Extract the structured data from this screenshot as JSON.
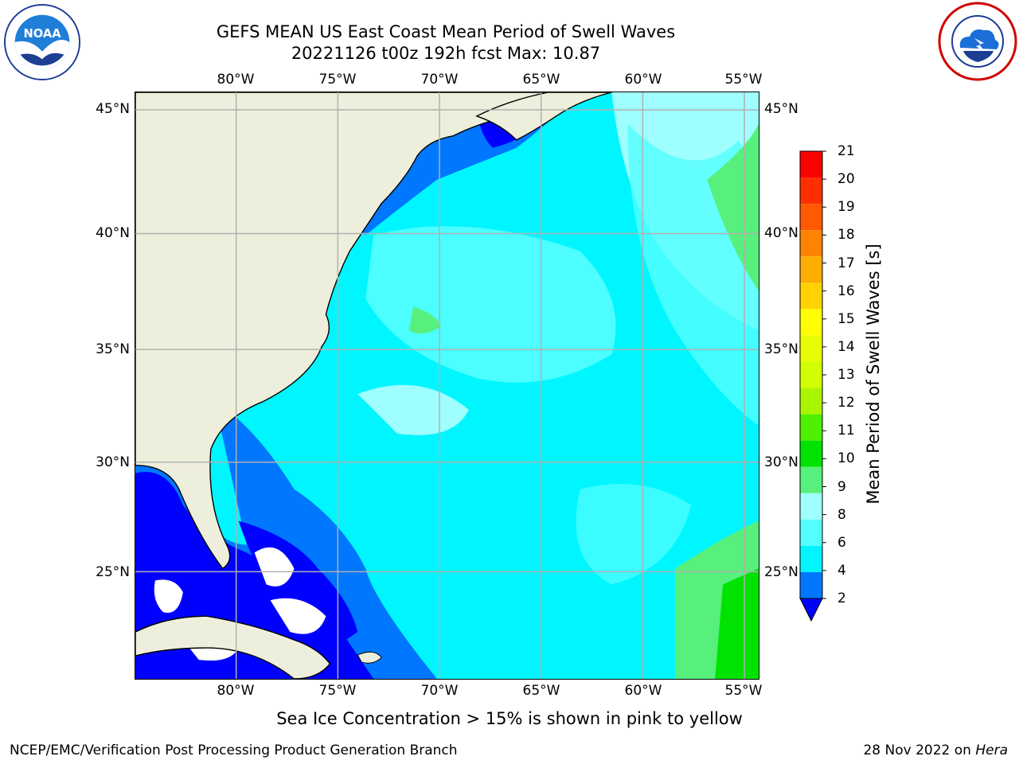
{
  "title": {
    "line1": "GEFS MEAN US East Coast Mean Period of Swell Waves",
    "line2": "20221126 t00z 192h fcst   Max: 10.87"
  },
  "logos": {
    "noaa": {
      "label": "NOAA",
      "icon": "noaa-logo",
      "ring_text": "NATIONAL OCEANIC AND ATMOSPHERIC ADMINISTRATION · U.S. DEPARTMENT OF COMMERCE"
    },
    "nws": {
      "icon": "nws-logo",
      "ring_text": "NATIONAL WEATHER SERVICE"
    }
  },
  "map": {
    "longitude_ticks": [
      "80°W",
      "75°W",
      "70°W",
      "65°W",
      "60°W",
      "55°W"
    ],
    "latitude_ticks": [
      "45°N",
      "40°N",
      "35°N",
      "30°N",
      "25°N"
    ],
    "extent": {
      "lon_min": -85,
      "lon_max": -54.5,
      "lat_min": 20.5,
      "lat_max": 46
    },
    "land_color": "#eeeedc",
    "grid": true
  },
  "colorbar": {
    "title": "Mean Period of Swell Waves [s]",
    "labels": [
      "21",
      "20",
      "19",
      "18",
      "17",
      "16",
      "15",
      "14",
      "13",
      "12",
      "11",
      "10",
      "9",
      "8",
      "6",
      "4",
      "2"
    ],
    "colors": [
      "#ff0000",
      "#ff2e00",
      "#ff5a00",
      "#ff8300",
      "#ffac00",
      "#ffd200",
      "#ffff00",
      "#e6ff00",
      "#d2ff00",
      "#aaf400",
      "#4df000",
      "#00e300",
      "#57f07c",
      "#9fffff",
      "#54ffff",
      "#00f6ff",
      "#0077ff"
    ],
    "extend_color": "#0000ff"
  },
  "footnote": "Sea Ice Concentration > 15% is shown in pink to yellow",
  "credits": {
    "left": "NCEP/EMC/Verification Post Processing Product Generation Branch",
    "right_prefix": "28 Nov 2022 on ",
    "right_host": "Hera"
  }
}
